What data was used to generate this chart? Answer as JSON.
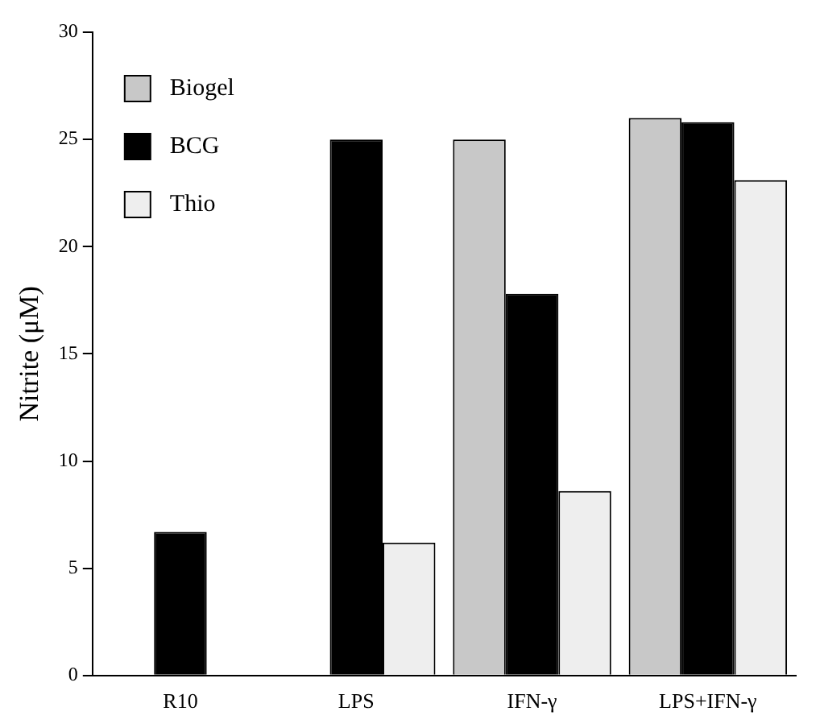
{
  "chart_data": {
    "type": "bar",
    "ylabel": "Nitrite (μM)",
    "categories": [
      "R10",
      "LPS",
      "IFN-γ",
      "LPS+IFN-γ"
    ],
    "series": [
      {
        "name": "Biogel",
        "color": "#c8c8c8",
        "values": [
          null,
          null,
          25,
          26
        ]
      },
      {
        "name": "BCG",
        "color": "#000000",
        "values": [
          6.7,
          25,
          17.8,
          25.8
        ]
      },
      {
        "name": "Thio",
        "color": "#eeeeee",
        "values": [
          null,
          6.2,
          8.6,
          23.1
        ]
      }
    ],
    "ylim": [
      0,
      30
    ],
    "yticks": [
      0,
      5,
      10,
      15,
      20,
      25,
      30
    ],
    "grid": false,
    "legend": "top left"
  }
}
